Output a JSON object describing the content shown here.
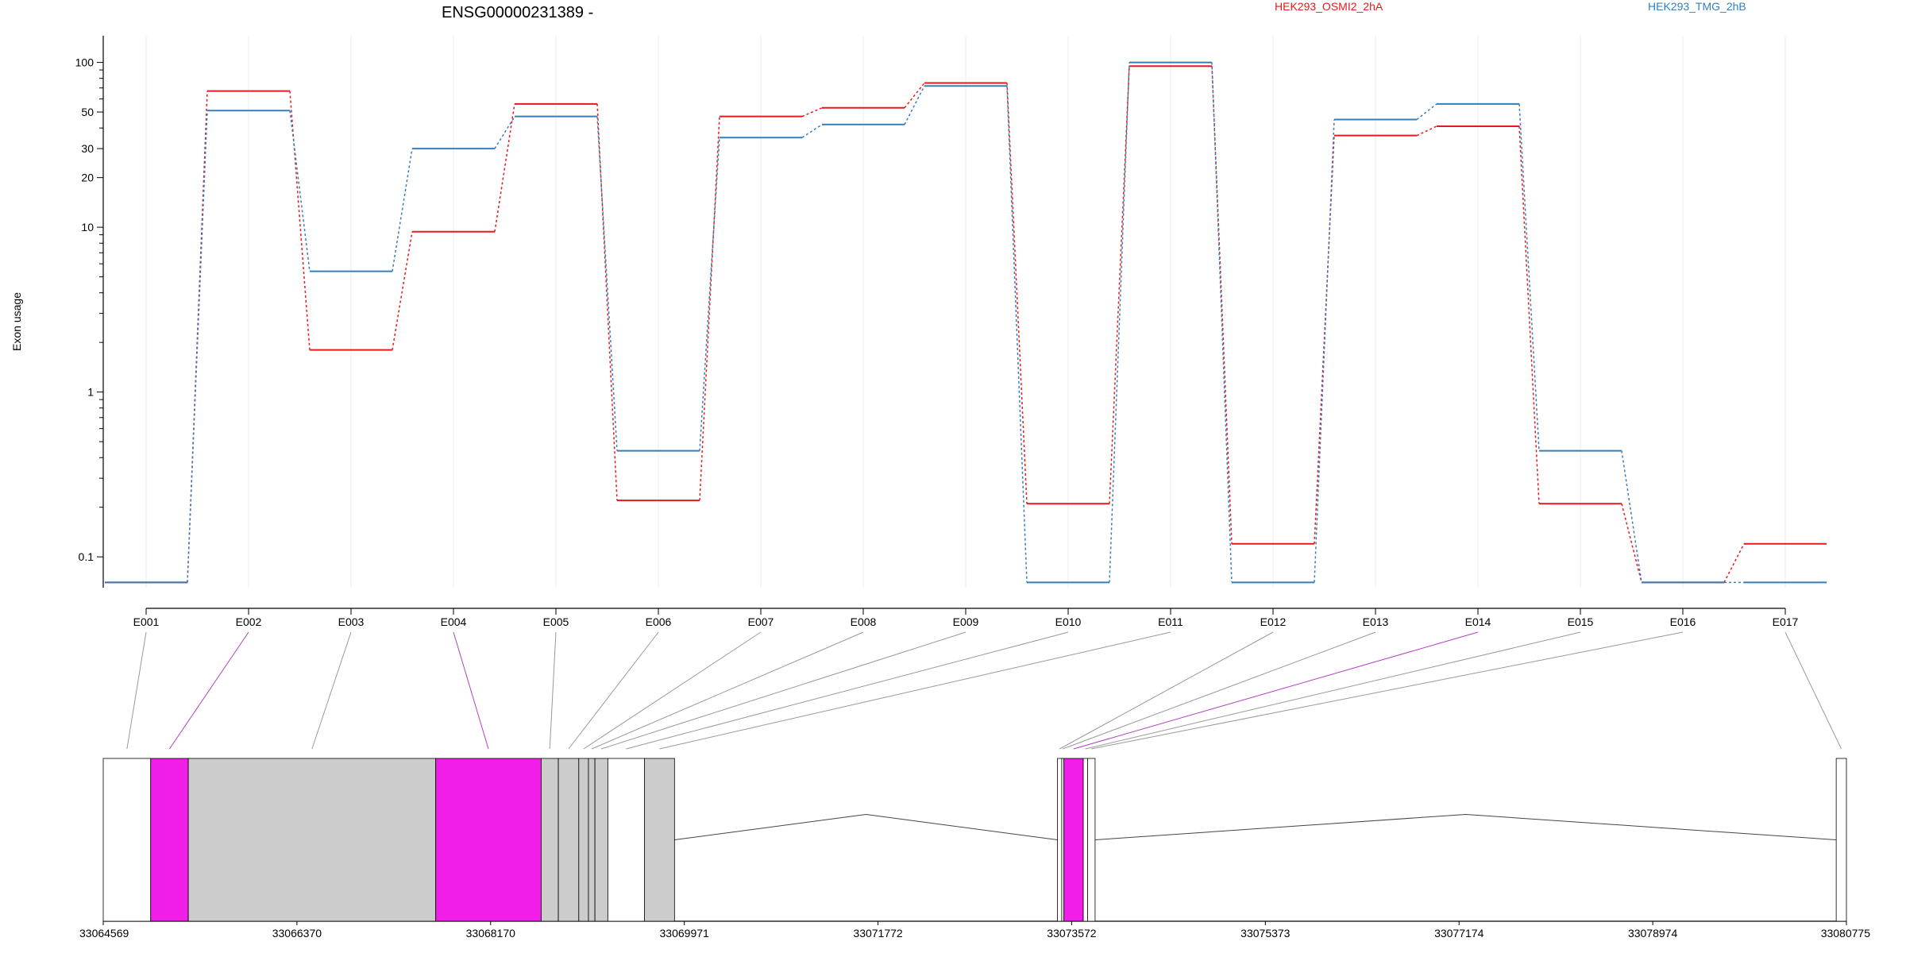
{
  "chart_data": {
    "type": "line",
    "title": "ENSG00000231389 -",
    "ylabel": "Exon usage",
    "y_scale": "log",
    "y_ticks": [
      0.1,
      1,
      10,
      20,
      30,
      50,
      100
    ],
    "y_tick_labels": [
      "0.1",
      "1",
      "10",
      "20",
      "30",
      "50",
      "100"
    ],
    "categories": [
      "E001",
      "E002",
      "E003",
      "E004",
      "E005",
      "E006",
      "E007",
      "E008",
      "E009",
      "E010",
      "E011",
      "E012",
      "E013",
      "E014",
      "E015",
      "E016",
      "E017"
    ],
    "series": [
      {
        "name": "HEK293_OSMI2_2hA",
        "color": "#e41a1c",
        "values": [
          0.07,
          67,
          1.8,
          9.4,
          56,
          0.22,
          47,
          53,
          75,
          0.21,
          95,
          0.12,
          36,
          41,
          0.21,
          0.07,
          0.12
        ]
      },
      {
        "name": "HEK293_TMG_2hB",
        "color": "#377eb8",
        "values": [
          0.07,
          51,
          5.4,
          30,
          47,
          0.44,
          35,
          42,
          72,
          0.07,
          100,
          0.07,
          45,
          56,
          0.44,
          0.07,
          0.07
        ]
      }
    ],
    "gene_model": {
      "coordinate_labels": [
        "33064569",
        "33066370",
        "33068170",
        "33069971",
        "33071772",
        "33073572",
        "33075373",
        "33077174",
        "33078974",
        "33080775"
      ],
      "start": 33064569,
      "end": 33080775,
      "exons": [
        {
          "id": "E001",
          "start": 33064569,
          "end": 33065010,
          "highlight": false,
          "white": true
        },
        {
          "id": "E002",
          "start": 33065010,
          "end": 33065360,
          "highlight": true
        },
        {
          "id": "E003",
          "start": 33065360,
          "end": 33067660,
          "highlight": false
        },
        {
          "id": "E004",
          "start": 33067660,
          "end": 33068640,
          "highlight": true
        },
        {
          "id": "E005",
          "start": 33068640,
          "end": 33068800,
          "highlight": false
        },
        {
          "id": "E006",
          "start": 33068800,
          "end": 33068990,
          "highlight": false
        },
        {
          "id": "E007",
          "start": 33068990,
          "end": 33069080,
          "highlight": false
        },
        {
          "id": "E008",
          "start": 33069080,
          "end": 33069140,
          "highlight": false
        },
        {
          "id": "E009",
          "start": 33069140,
          "end": 33069260,
          "highlight": false
        },
        {
          "id": "E010",
          "start": 33069260,
          "end": 33069600,
          "highlight": false,
          "white": true
        },
        {
          "id": "E011",
          "start": 33069600,
          "end": 33069880,
          "highlight": false
        },
        {
          "id": "E012",
          "start": 33073440,
          "end": 33073480,
          "highlight": false,
          "white": true
        },
        {
          "id": "E013",
          "start": 33073480,
          "end": 33073500,
          "highlight": false,
          "white": true
        },
        {
          "id": "E014",
          "start": 33073500,
          "end": 33073680,
          "highlight": true
        },
        {
          "id": "E015",
          "start": 33073680,
          "end": 33073720,
          "highlight": false,
          "white": true
        },
        {
          "id": "E016",
          "start": 33073720,
          "end": 33073790,
          "highlight": false,
          "white": true
        },
        {
          "id": "E017",
          "start": 33080680,
          "end": 33080775,
          "highlight": false,
          "white": true
        }
      ],
      "introns": [
        {
          "start": 33069880,
          "end": 33073440
        },
        {
          "start": 33073790,
          "end": 33080680
        }
      ]
    },
    "colors": {
      "highlight_exon": "#f01ee8",
      "gray_exon": "#cccccc",
      "highlight_connector": "#b040c0",
      "connector": "#999999",
      "grid": "#eeeeee"
    }
  }
}
